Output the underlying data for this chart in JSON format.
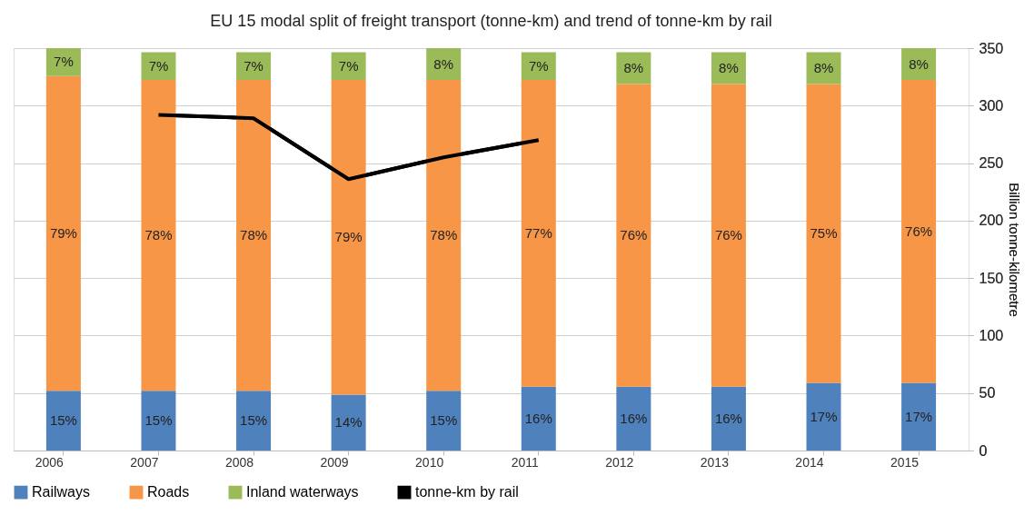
{
  "chart_data": {
    "type": "bar",
    "title": "EU 15 modal split of freight transport (tonne-km) and trend of tonne-km by rail",
    "categories": [
      "2006",
      "2007",
      "2008",
      "2009",
      "2010",
      "2011",
      "2012",
      "2013",
      "2014",
      "2015"
    ],
    "stacked": true,
    "ylim": [
      0,
      101
    ],
    "series": [
      {
        "name": "Railways",
        "color": "#4f81bd",
        "values": [
          15,
          15,
          15,
          14,
          15,
          16,
          16,
          16,
          17,
          17
        ],
        "value_labels": [
          "15%",
          "15%",
          "15%",
          "14%",
          "15%",
          "16%",
          "16%",
          "16%",
          "17%",
          "17%"
        ]
      },
      {
        "name": "Roads",
        "color": "#f79646",
        "values": [
          79,
          78,
          78,
          79,
          78,
          77,
          76,
          76,
          75,
          76
        ],
        "value_labels": [
          "79%",
          "78%",
          "78%",
          "79%",
          "78%",
          "77%",
          "76%",
          "76%",
          "75%",
          "76%"
        ]
      },
      {
        "name": "Inland waterways",
        "color": "#9bbb59",
        "values": [
          7,
          7,
          7,
          7,
          8,
          7,
          8,
          8,
          8,
          8
        ],
        "value_labels": [
          "7%",
          "7%",
          "7%",
          "7%",
          "8%",
          "7%",
          "8%",
          "8%",
          "8%",
          "8%"
        ]
      },
      {
        "name": "tonne-km by rail",
        "type": "line",
        "axis": "y2",
        "color": "#000000",
        "values": [
          null,
          292,
          289,
          236,
          255,
          270,
          null,
          null,
          null,
          null
        ]
      }
    ],
    "y2label": "Billion tonne-kilometre",
    "y2lim": [
      0,
      350
    ],
    "y2ticks": [
      0,
      50,
      100,
      150,
      200,
      250,
      300,
      350
    ],
    "grid": "y",
    "legend": "bottom",
    "line_style": "solid"
  }
}
